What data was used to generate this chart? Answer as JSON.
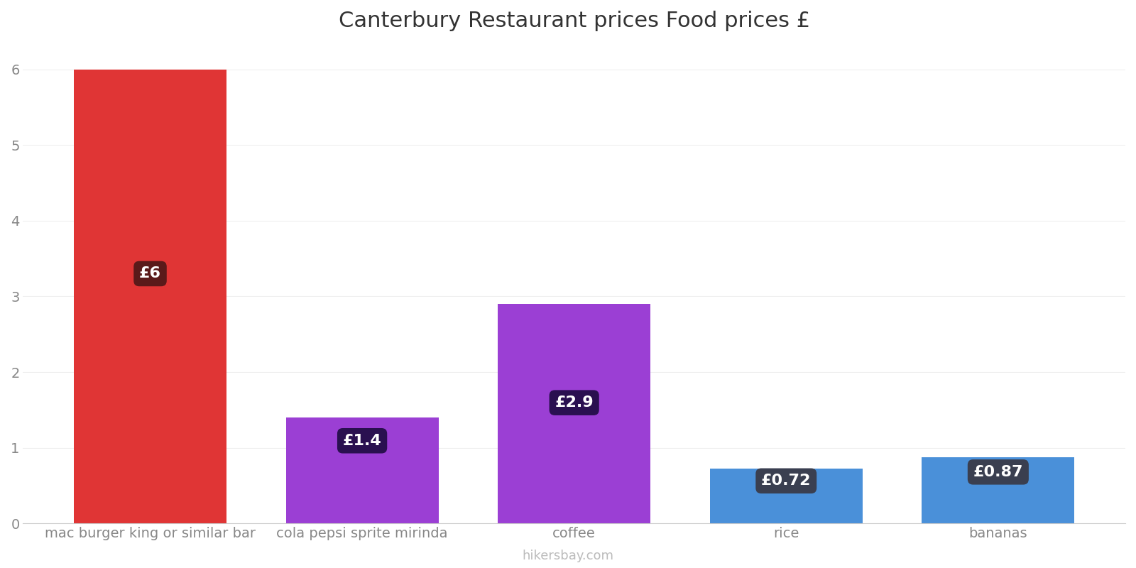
{
  "title": "Canterbury Restaurant prices Food prices £",
  "categories": [
    "mac burger king or similar bar",
    "cola pepsi sprite mirinda",
    "coffee",
    "rice",
    "bananas"
  ],
  "values": [
    6.0,
    1.4,
    2.9,
    0.72,
    0.87
  ],
  "bar_colors": [
    "#e03535",
    "#9b3fd4",
    "#9b3fd4",
    "#4a90d9",
    "#4a90d9"
  ],
  "label_bg_colors": [
    "#5a1a1a",
    "#2a1050",
    "#2a1050",
    "#3a3f50",
    "#3a3f50"
  ],
  "labels": [
    "£6",
    "£1.4",
    "£2.9",
    "£0.72",
    "£0.87"
  ],
  "ylim": [
    0,
    6.3
  ],
  "yticks": [
    0,
    1,
    2,
    3,
    4,
    5,
    6
  ],
  "title_fontsize": 22,
  "tick_fontsize": 14,
  "label_fontsize": 16,
  "background_color": "#ffffff",
  "watermark": "hikersbay.com",
  "bar_width": 0.72
}
